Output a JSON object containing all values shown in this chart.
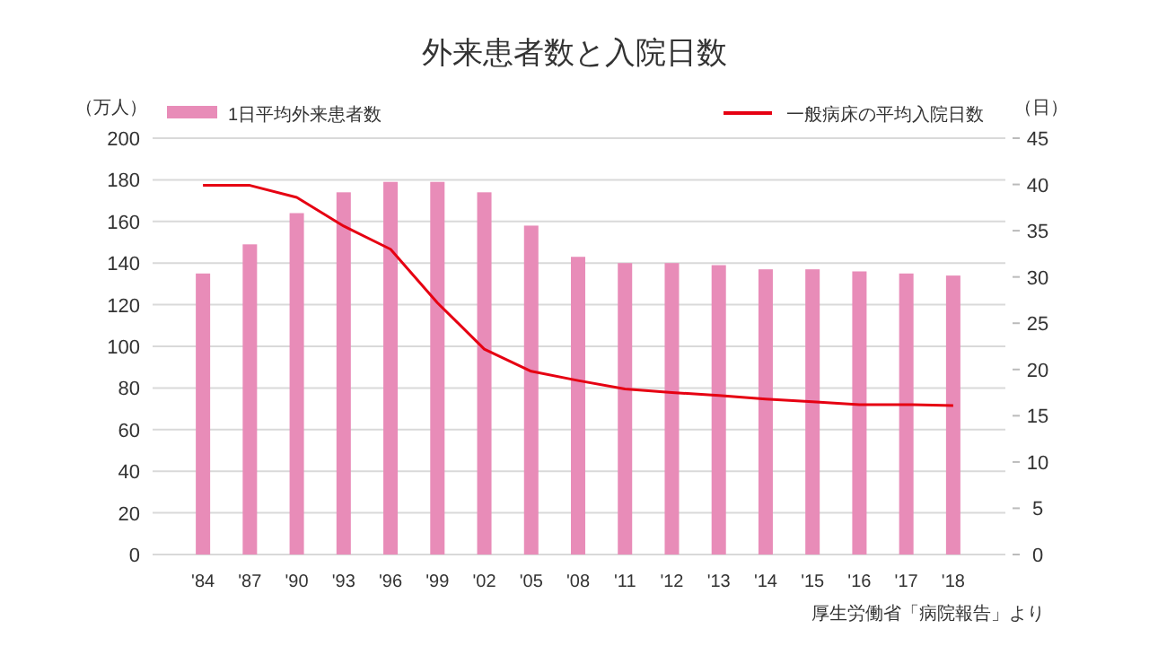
{
  "chart_data": {
    "type": "bar",
    "title": "外来患者数と入院日数",
    "categories": [
      "'84",
      "'87",
      "'90",
      "'93",
      "'96",
      "'99",
      "'02",
      "'05",
      "'08",
      "'11",
      "'12",
      "'13",
      "'14",
      "'15",
      "'16",
      "'17",
      "'18"
    ],
    "series": [
      {
        "name": "1日平均外来患者数",
        "color": "#e88cb8",
        "values": [
          135,
          149,
          164,
          174,
          179,
          179,
          174,
          158,
          143,
          140,
          140,
          139,
          137,
          137,
          136,
          135,
          134
        ]
      },
      {
        "name": "一般病床の平均入院日数",
        "type": "line",
        "axis": "y2",
        "color": "#e60012",
        "values": [
          39.9,
          39.9,
          38.6,
          35.5,
          33.0,
          27.2,
          22.2,
          19.8,
          18.8,
          17.9,
          17.5,
          17.2,
          16.8,
          16.5,
          16.2,
          16.2,
          16.1
        ]
      }
    ],
    "ylabel": "（万人）",
    "y2label": "（日）",
    "ylim": [
      0,
      200
    ],
    "yticks": [
      0,
      20,
      40,
      60,
      80,
      100,
      120,
      140,
      160,
      180,
      200
    ],
    "y2lim": [
      0,
      45
    ],
    "y2ticks": [
      0,
      5,
      10,
      15,
      20,
      25,
      30,
      35,
      40,
      45
    ],
    "grid": "y",
    "legend": "top",
    "annotations": [
      "厚生労働省「病院報告」より"
    ]
  }
}
